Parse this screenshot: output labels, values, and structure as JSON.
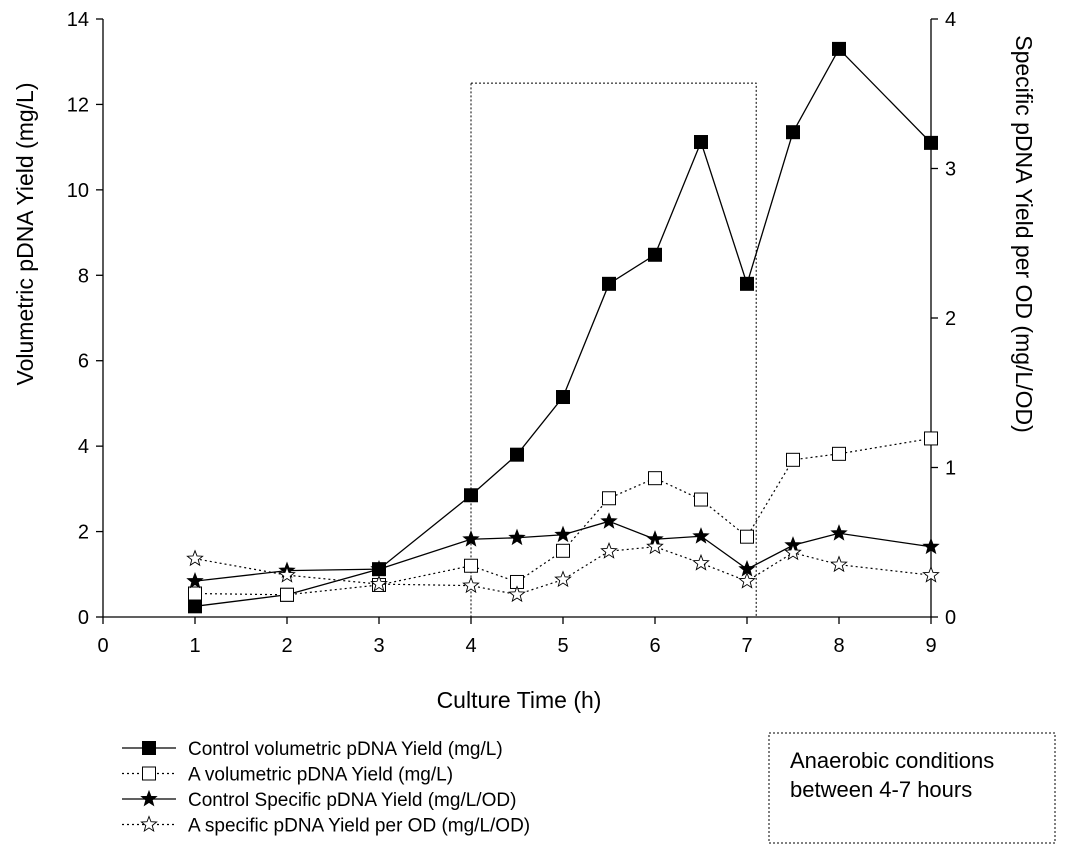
{
  "chart_data": {
    "type": "line",
    "title": "",
    "xlabel": "Culture Time (h)",
    "ylabel": "Volumetric pDNA Yield (mg/L)",
    "y2label": "Specific pDNA Yield per OD (mg/L/OD)",
    "xlim": [
      0,
      9
    ],
    "ylim": [
      0,
      14
    ],
    "y2lim": [
      0,
      4
    ],
    "xticks": [
      "0",
      "1",
      "2",
      "3",
      "4",
      "5",
      "6",
      "7",
      "8",
      "9"
    ],
    "yticks": [
      "0",
      "2",
      "4",
      "6",
      "8",
      "10",
      "12",
      "14"
    ],
    "y2ticks": [
      "0",
      "1",
      "2",
      "3",
      "4"
    ],
    "grid": false,
    "legend_position": "bottom-left",
    "series": [
      {
        "name": "Control volumetric pDNA Yield (mg/L)",
        "axis": "left",
        "marker": "filled-square",
        "line": "solid",
        "x": [
          1,
          2,
          3,
          4,
          4.5,
          5,
          5.5,
          6,
          6.5,
          7,
          7.5,
          8,
          9
        ],
        "y": [
          0.25,
          0.52,
          1.12,
          2.85,
          3.8,
          5.15,
          7.8,
          8.48,
          11.12,
          7.8,
          11.35,
          13.3,
          11.1
        ]
      },
      {
        "name": "A volumetric pDNA Yield (mg/L)",
        "axis": "left",
        "marker": "open-square",
        "line": "dotted",
        "x": [
          1,
          2,
          3,
          4,
          4.5,
          5,
          5.5,
          6,
          6.5,
          7,
          7.5,
          8,
          9
        ],
        "y": [
          0.55,
          0.52,
          0.75,
          1.2,
          0.82,
          1.55,
          2.78,
          3.25,
          2.75,
          1.88,
          3.68,
          3.82,
          4.18
        ]
      },
      {
        "name": "Control Specific pDNA Yield (mg/L/OD)",
        "axis": "right",
        "marker": "filled-star",
        "line": "solid",
        "x": [
          1,
          2,
          3,
          4,
          4.5,
          5,
          5.5,
          6,
          6.5,
          7,
          7.5,
          8,
          9
        ],
        "y": [
          0.24,
          0.31,
          0.32,
          0.52,
          0.53,
          0.55,
          0.64,
          0.52,
          0.54,
          0.32,
          0.48,
          0.56,
          0.47
        ]
      },
      {
        "name": "A specific pDNA Yield per OD (mg/L/OD)",
        "axis": "right",
        "marker": "open-star",
        "line": "dotted",
        "x": [
          1,
          2,
          3,
          4,
          4.5,
          5,
          5.5,
          6,
          6.5,
          7,
          7.5,
          8,
          9
        ],
        "y": [
          0.39,
          0.28,
          0.22,
          0.21,
          0.15,
          0.25,
          0.44,
          0.47,
          0.36,
          0.24,
          0.43,
          0.35,
          0.28
        ]
      }
    ],
    "highlight_region": {
      "x_range": [
        4,
        7.1
      ],
      "y_range": [
        0,
        12.5
      ]
    },
    "annotation": [
      "Anaerobic conditions",
      "between 4-7 hours"
    ]
  }
}
